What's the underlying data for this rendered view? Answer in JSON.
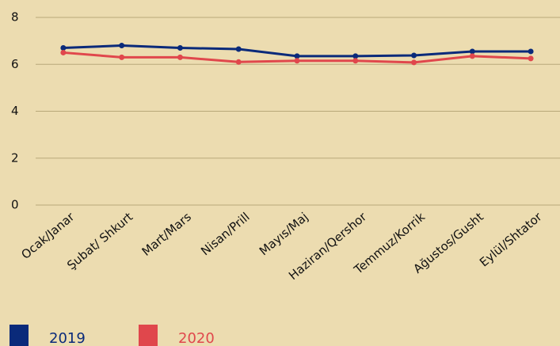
{
  "chart_data": {
    "type": "line",
    "categories": [
      "Ocak/Janar",
      "Şubat/ Shkurt",
      "Mart/Mars",
      "Nisan/Prill",
      "Mayıs/Maj",
      "Haziran/Qershor",
      "Temmuz/Korrik",
      "Ağustos/Gusht",
      "Eylül/Shtator"
    ],
    "series": [
      {
        "name": "2019",
        "color": "#0a2a7a",
        "values": [
          6.7,
          6.8,
          6.7,
          6.65,
          6.35,
          6.35,
          6.38,
          6.55,
          6.55
        ]
      },
      {
        "name": "2020",
        "color": "#e0474c",
        "values": [
          6.5,
          6.3,
          6.3,
          6.1,
          6.15,
          6.15,
          6.08,
          6.35,
          6.25
        ]
      }
    ],
    "ylim": [
      0,
      8
    ],
    "yticks": [
      0,
      2,
      4,
      6,
      8
    ],
    "grid": true,
    "legend": "bottom"
  }
}
